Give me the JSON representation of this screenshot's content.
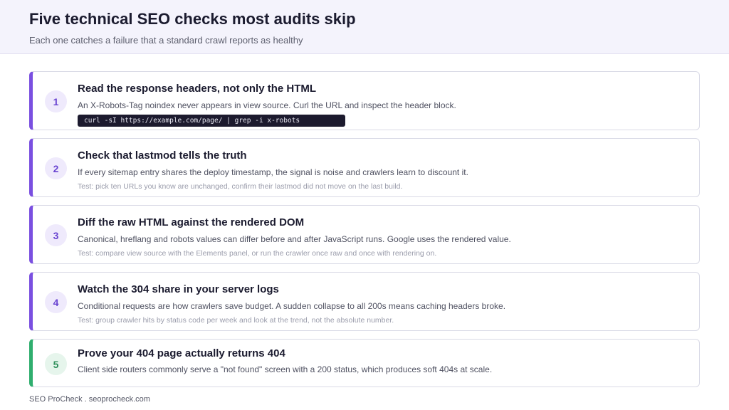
{
  "header": {
    "title": "Five technical SEO checks most audits skip",
    "subtitle": "Each one catches a failure that a standard crawl reports as healthy"
  },
  "checks": [
    {
      "number": "1",
      "title": "Read the response headers, not only the HTML",
      "description": "An X-Robots-Tag noindex never appears in view source. Curl the URL and inspect the header block.",
      "code": "curl -sI https://example.com/page/ | grep -i x-robots",
      "accent": "#7a4fe0"
    },
    {
      "number": "2",
      "title": "Check that lastmod tells the truth",
      "description": "If every sitemap entry shares the deploy timestamp, the signal is noise and crawlers learn to discount it.",
      "test": "Test: pick ten URLs you know are unchanged, confirm their lastmod did not move on the last build.",
      "accent": "#7a4fe0"
    },
    {
      "number": "3",
      "title": "Diff the raw HTML against the rendered DOM",
      "description": "Canonical, hreflang and robots values can differ before and after JavaScript runs. Google uses the rendered value.",
      "test": "Test: compare view source with the Elements panel, or run the crawler once raw and once with rendering on.",
      "accent": "#7a4fe0"
    },
    {
      "number": "4",
      "title": "Watch the 304 share in your server logs",
      "description": "Conditional requests are how crawlers save budget. A sudden collapse to all 200s means caching headers broke.",
      "test": "Test: group crawler hits by status code per week and look at the trend, not the absolute number.",
      "accent": "#7a4fe0"
    },
    {
      "number": "5",
      "title": "Prove your 404 page actually returns 404",
      "description": "Client side routers commonly serve a \"not found\" screen with a 200 status, which produces soft 404s at scale.",
      "accent": "#2fae6e"
    }
  ],
  "footer": {
    "text": "SEO ProCheck . seoprocheck.com"
  }
}
